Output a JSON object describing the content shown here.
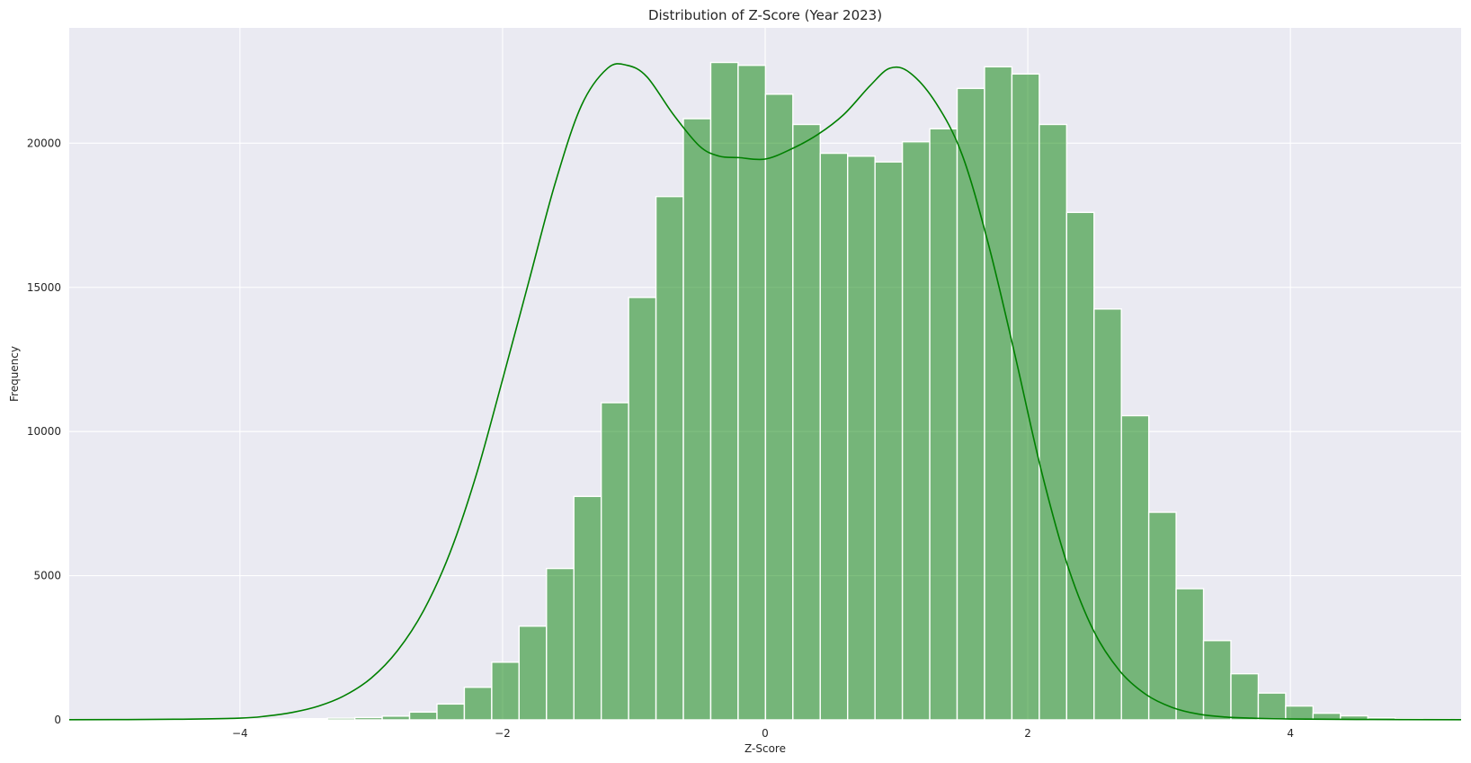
{
  "chart_data": {
    "type": "bar",
    "subtype": "histogram-with-kde",
    "title": "Distribution of Z-Score (Year 2023)",
    "xlabel": "Z-Score",
    "ylabel": "Frequency",
    "xlim": [
      -5.3,
      5.3
    ],
    "ylim": [
      0,
      24000
    ],
    "xticks": [
      -4,
      -2,
      0,
      2,
      4
    ],
    "xtick_labels": [
      "−4",
      "−2",
      "0",
      "2",
      "4"
    ],
    "yticks": [
      0,
      5000,
      10000,
      15000,
      20000
    ],
    "ytick_labels": [
      "0",
      "5000",
      "10000",
      "15000",
      "20000"
    ],
    "grid": true,
    "bar_color": "#008000",
    "line_color": "#008000",
    "background_color": "#eaeaf2",
    "bins": {
      "start": -5.21,
      "width": 0.2085,
      "counts": [
        3,
        3,
        5,
        8,
        10,
        15,
        20,
        30,
        40,
        60,
        80,
        130,
        270,
        550,
        1130,
        2000,
        3250,
        5250,
        7750,
        11000,
        14650,
        18150,
        20850,
        22800,
        22700,
        21700,
        20650,
        19650,
        19550,
        19350,
        20050,
        20500,
        21900,
        22650,
        22400,
        20650,
        17600,
        14250,
        10550,
        7200,
        4550,
        2750,
        1600,
        930,
        480,
        230,
        140,
        70,
        40,
        25,
        15,
        10
      ]
    },
    "kde": {
      "x": [
        -5.3,
        -4.5,
        -4.0,
        -3.8,
        -3.6,
        -3.4,
        -3.2,
        -3.0,
        -2.8,
        -2.6,
        -2.4,
        -2.2,
        -2.0,
        -1.8,
        -1.6,
        -1.4,
        -1.2,
        -1.05,
        -0.9,
        -0.7,
        -0.5,
        -0.35,
        -0.2,
        0.0,
        0.2,
        0.4,
        0.6,
        0.8,
        0.95,
        1.1,
        1.3,
        1.5,
        1.7,
        1.9,
        2.1,
        2.3,
        2.5,
        2.7,
        2.9,
        3.1,
        3.3,
        3.5,
        3.7,
        4.0,
        4.5,
        5.3
      ],
      "y": [
        5,
        20,
        60,
        130,
        260,
        480,
        850,
        1450,
        2400,
        3800,
        5800,
        8500,
        11800,
        15200,
        18600,
        21300,
        22600,
        22700,
        22300,
        21000,
        19900,
        19550,
        19500,
        19450,
        19800,
        20300,
        21000,
        22000,
        22600,
        22450,
        21400,
        19600,
        16500,
        12700,
        8700,
        5400,
        3100,
        1700,
        880,
        430,
        200,
        100,
        60,
        30,
        15,
        5
      ]
    }
  }
}
